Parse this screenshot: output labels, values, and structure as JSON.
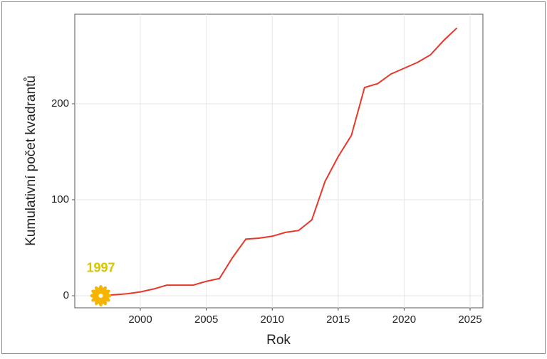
{
  "chart_data": {
    "type": "line",
    "x_label": "Rok",
    "y_label": "Kumulativní počet kvadrantů",
    "annotation": "1997",
    "x": [
      1997,
      1998,
      1999,
      2000,
      2001,
      2002,
      2003,
      2004,
      2005,
      2006,
      2007,
      2008,
      2009,
      2010,
      2011,
      2012,
      2013,
      2014,
      2015,
      2016,
      2017,
      2018,
      2019,
      2020,
      2021,
      2022,
      2023,
      2024
    ],
    "series": [
      {
        "color": "#e8362a",
        "values": [
          0,
          1,
          2,
          4,
          7,
          11,
          11,
          11,
          15,
          18,
          40,
          59,
          60,
          62,
          66,
          68,
          79,
          119,
          145,
          167,
          217,
          221,
          231,
          237,
          243,
          251,
          266,
          279
        ]
      }
    ],
    "marker_color": "#f5b400",
    "annotation_color": "#d8c400",
    "xlim": [
      1995.03,
      2025.97
    ],
    "ylim": [
      -12.6,
      293.3
    ],
    "xticks": [
      2000,
      2005,
      2010,
      2015,
      2020,
      2025
    ],
    "yticks": [
      0,
      100,
      200
    ],
    "grid": true
  }
}
